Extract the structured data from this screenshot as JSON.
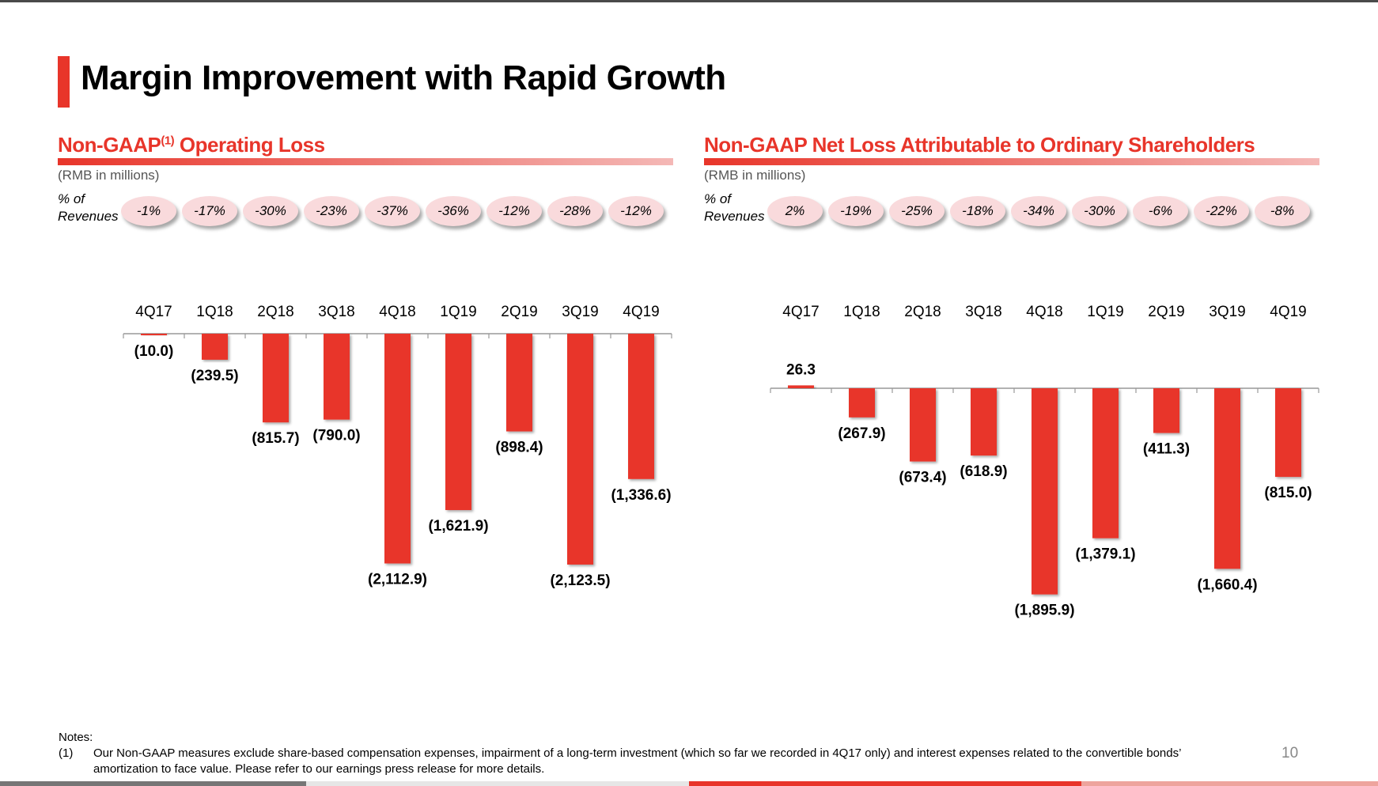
{
  "title": "Margin Improvement with Rapid Growth",
  "page_number": "10",
  "colors": {
    "accent": "#e8352a",
    "pill": "#f9dadc"
  },
  "notes": {
    "heading": "Notes:",
    "items": [
      {
        "num": "(1)",
        "text": "Our Non-GAAP measures exclude share-based compensation expenses, impairment of a long-term investment (which so far we recorded in 4Q17 only) and interest expenses related to the convertible bonds’ amortization to face value. Please refer to our earnings press release for more details."
      }
    ]
  },
  "panels": [
    {
      "title": "Non-GAAP",
      "title_sup": "(1)",
      "title_rest": " Operating Loss",
      "units": "(RMB in millions)",
      "pct_label_line1": "% of",
      "pct_label_line2": "Revenues",
      "pct_of_revenues": [
        "-1%",
        "-17%",
        "-30%",
        "-23%",
        "-37%",
        "-36%",
        "-12%",
        "-28%",
        "-12%"
      ]
    },
    {
      "title": "Non-GAAP Net Loss Attributable to Ordinary Shareholders",
      "title_sup": "",
      "title_rest": "",
      "units": "(RMB in millions)",
      "pct_label_line1": "% of",
      "pct_label_line2": "Revenues",
      "pct_of_revenues": [
        "2%",
        "-19%",
        "-25%",
        "-18%",
        "-34%",
        "-30%",
        "-6%",
        "-22%",
        "-8%"
      ]
    }
  ],
  "chart_data": [
    {
      "type": "bar",
      "title": "Non-GAAP(1) Operating Loss",
      "ylabel": "RMB in millions",
      "categories": [
        "4Q17",
        "1Q18",
        "2Q18",
        "3Q18",
        "4Q18",
        "1Q19",
        "2Q19",
        "3Q19",
        "4Q19"
      ],
      "values": [
        -10.0,
        -239.5,
        -815.7,
        -790.0,
        -2112.9,
        -1621.9,
        -898.4,
        -2123.5,
        -1336.6
      ],
      "data_labels": [
        "(10.0)",
        "(239.5)",
        "(815.7)",
        "(790.0)",
        "(2,112.9)",
        "(1,621.9)",
        "(898.4)",
        "(2,123.5)",
        "(1,336.6)"
      ],
      "grid": false,
      "legend": "none"
    },
    {
      "type": "bar",
      "title": "Non-GAAP Net Loss Attributable to Ordinary Shareholders",
      "ylabel": "RMB in millions",
      "categories": [
        "4Q17",
        "1Q18",
        "2Q18",
        "3Q18",
        "4Q18",
        "1Q19",
        "2Q19",
        "3Q19",
        "4Q19"
      ],
      "values": [
        26.3,
        -267.9,
        -673.4,
        -618.9,
        -1895.9,
        -1379.1,
        -411.3,
        -1660.4,
        -815.0
      ],
      "data_labels": [
        "26.3",
        "(267.9)",
        "(673.4)",
        "(618.9)",
        "(1,895.9)",
        "(1,379.1)",
        "(411.3)",
        "(1,660.4)",
        "(815.0)"
      ],
      "grid": false,
      "legend": "none"
    }
  ]
}
